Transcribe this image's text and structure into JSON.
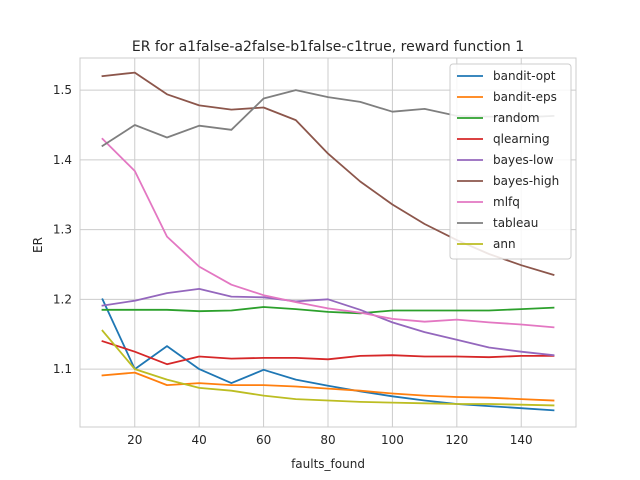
{
  "chart_data": {
    "type": "line",
    "title": "ER for a1false-a2false-b1false-c1true, reward function 1",
    "xlabel": "faults_found",
    "ylabel": "ER",
    "xlim": [
      3,
      157
    ],
    "ylim": [
      1.017,
      1.546
    ],
    "xticks": [
      20,
      40,
      60,
      80,
      100,
      120,
      140
    ],
    "yticks": [
      1.1,
      1.2,
      1.3,
      1.4,
      1.5
    ],
    "grid": true,
    "legend_position": "top-right",
    "x": [
      10,
      20,
      30,
      40,
      50,
      60,
      70,
      80,
      90,
      100,
      110,
      120,
      130,
      140,
      150
    ],
    "series": [
      {
        "name": "bandit-opt",
        "color": "#1f77b4",
        "values": [
          1.2,
          1.1,
          1.133,
          1.1,
          1.08,
          1.099,
          1.085,
          1.076,
          1.068,
          1.061,
          1.055,
          1.05,
          1.047,
          1.044,
          1.041
        ]
      },
      {
        "name": "bandit-eps",
        "color": "#ff7f0e",
        "values": [
          1.091,
          1.095,
          1.077,
          1.08,
          1.077,
          1.077,
          1.075,
          1.072,
          1.069,
          1.065,
          1.062,
          1.06,
          1.059,
          1.057,
          1.055
        ]
      },
      {
        "name": "random",
        "color": "#2ca02c",
        "values": [
          1.185,
          1.185,
          1.185,
          1.183,
          1.184,
          1.189,
          1.186,
          1.182,
          1.18,
          1.184,
          1.184,
          1.184,
          1.184,
          1.186,
          1.188
        ]
      },
      {
        "name": "qlearning",
        "color": "#d62728",
        "values": [
          1.14,
          1.125,
          1.107,
          1.118,
          1.115,
          1.116,
          1.116,
          1.114,
          1.119,
          1.12,
          1.118,
          1.118,
          1.117,
          1.119,
          1.119
        ]
      },
      {
        "name": "bayes-low",
        "color": "#9467bd",
        "values": [
          1.191,
          1.198,
          1.209,
          1.215,
          1.204,
          1.203,
          1.197,
          1.2,
          1.185,
          1.167,
          1.153,
          1.142,
          1.131,
          1.125,
          1.12
        ]
      },
      {
        "name": "bayes-high",
        "color": "#8c564b",
        "values": [
          1.52,
          1.525,
          1.494,
          1.478,
          1.472,
          1.475,
          1.457,
          1.409,
          1.369,
          1.336,
          1.308,
          1.285,
          1.265,
          1.249,
          1.235
        ]
      },
      {
        "name": "mlfq",
        "color": "#e377c2",
        "values": [
          1.43,
          1.384,
          1.29,
          1.247,
          1.221,
          1.206,
          1.196,
          1.187,
          1.181,
          1.172,
          1.168,
          1.171,
          1.167,
          1.164,
          1.16
        ]
      },
      {
        "name": "tableau",
        "color": "#7f7f7f",
        "values": [
          1.42,
          1.45,
          1.432,
          1.449,
          1.443,
          1.488,
          1.5,
          1.49,
          1.483,
          1.469,
          1.473,
          1.463,
          1.462,
          1.461,
          1.463
        ]
      },
      {
        "name": "ann",
        "color": "#bcbd22",
        "values": [
          1.155,
          1.1,
          1.085,
          1.073,
          1.069,
          1.062,
          1.057,
          1.055,
          1.053,
          1.052,
          1.051,
          1.05,
          1.05,
          1.049,
          1.048
        ]
      }
    ]
  }
}
